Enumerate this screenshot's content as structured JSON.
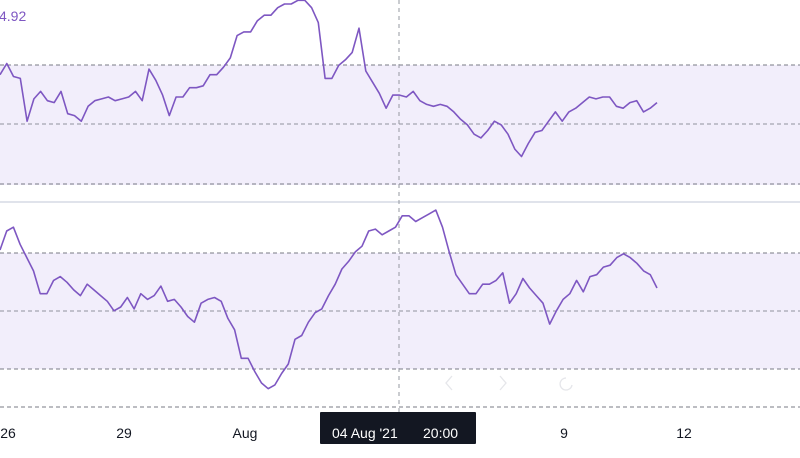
{
  "chart_data": [
    {
      "type": "line",
      "name": "upper-oscillator-pane",
      "value_label": "4.92",
      "points": [
        62,
        68,
        61,
        60,
        37,
        49,
        53,
        48,
        47,
        53,
        41,
        40,
        37,
        45,
        48,
        49,
        50,
        48,
        49,
        50,
        53,
        48,
        65,
        59,
        51,
        40,
        50,
        50,
        55,
        55,
        56,
        62,
        62,
        66,
        71,
        83,
        85,
        85,
        91,
        94,
        94,
        98,
        100,
        100,
        102,
        102,
        98,
        90,
        60,
        60,
        67,
        70,
        74,
        87,
        64,
        58,
        52,
        44,
        51,
        51,
        50,
        53,
        48,
        46,
        45,
        46,
        45,
        42,
        38,
        35,
        30,
        28,
        32,
        37,
        35,
        30,
        22,
        18,
        25,
        31,
        32,
        37,
        42,
        37,
        42,
        44,
        47,
        50,
        49,
        50,
        50,
        45,
        44,
        47,
        48,
        42,
        44,
        47
      ]
    },
    {
      "type": "line",
      "name": "lower-oscillator-pane",
      "points": [
        80,
        90,
        92,
        83,
        76,
        69,
        57,
        57,
        64,
        66,
        63,
        59,
        56,
        62,
        59,
        56,
        53,
        48,
        50,
        55,
        49,
        57,
        54,
        56,
        61,
        53,
        54,
        50,
        45,
        42,
        52,
        54,
        55,
        53,
        44,
        38,
        23,
        23,
        16,
        10,
        7,
        9,
        15,
        20,
        33,
        35,
        42,
        47,
        49,
        56,
        62,
        70,
        74,
        79,
        82,
        90,
        91,
        88,
        90,
        92,
        98,
        98,
        95,
        97,
        99,
        101,
        92,
        79,
        67,
        62,
        57,
        57,
        62,
        62,
        64,
        68,
        52,
        57,
        65,
        60,
        56,
        52,
        41,
        48,
        54,
        57,
        64,
        58,
        66,
        67,
        71,
        72,
        76,
        78,
        76,
        73,
        69,
        67,
        60
      ]
    }
  ],
  "x_axis": {
    "ticks": [
      "26",
      "29",
      "Aug",
      "9",
      "12"
    ]
  },
  "crosshair": {
    "date_label": "04 Aug '21",
    "time_label": "20:00"
  },
  "colors": {
    "line": "#7e57c2",
    "band_fill": "#f2eefb",
    "band_line": "#787b86",
    "pane_separator": "#e0e3eb",
    "crosshair": "#9598a1",
    "label_bg": "#131722"
  }
}
